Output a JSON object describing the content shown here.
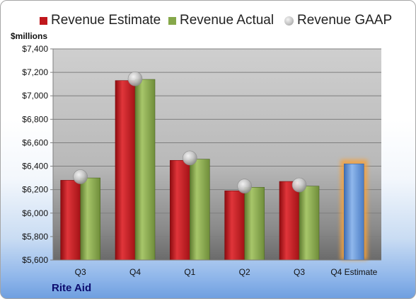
{
  "legend": {
    "estimate": "Revenue Estimate",
    "actual": "Revenue Actual",
    "gaap": "Revenue GAAP"
  },
  "unit_label": "$millions",
  "company": "Rite Aid",
  "colors": {
    "estimate": "#c0171c",
    "actual": "#86a84a",
    "gaap": "#b4b4b4",
    "forecast": "#5b8fd6",
    "highlight": "#f4a23c"
  },
  "chart_data": {
    "type": "bar",
    "categories": [
      "Q3",
      "Q4",
      "Q1",
      "Q2",
      "Q3",
      "Q4 Estimate"
    ],
    "series": [
      {
        "name": "Revenue Estimate",
        "values": [
          6280,
          7130,
          6450,
          6190,
          6270,
          null
        ]
      },
      {
        "name": "Revenue Actual",
        "values": [
          6300,
          7140,
          6460,
          6220,
          6230,
          6420
        ]
      },
      {
        "name": "Revenue GAAP",
        "values": [
          6310,
          7145,
          6470,
          6230,
          6240,
          null
        ]
      }
    ],
    "ylabel": "$millions",
    "ylim": [
      5600,
      7400
    ],
    "yticks": [
      5600,
      5800,
      6000,
      6200,
      6400,
      6600,
      6800,
      7000,
      7200,
      7400
    ],
    "ytick_labels": [
      "$5,600",
      "$5,800",
      "$6,000",
      "$6,200",
      "$6,400",
      "$6,600",
      "$6,800",
      "$7,000",
      "$7,200",
      "$7,400"
    ],
    "grid": true,
    "legend_position": "top"
  }
}
